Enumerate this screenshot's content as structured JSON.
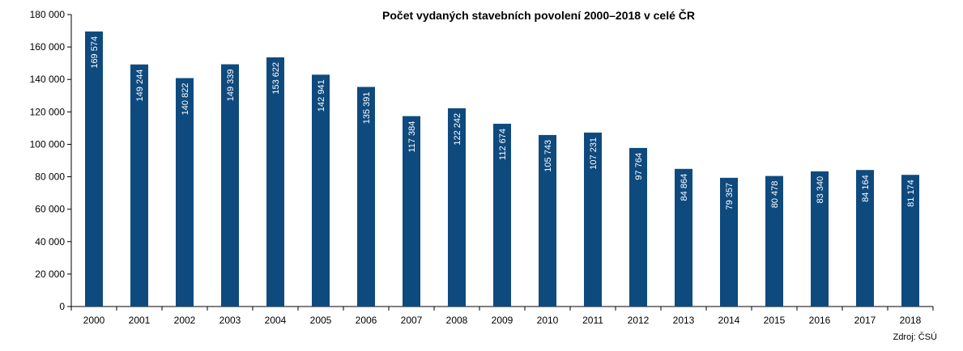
{
  "chart_data": {
    "type": "bar",
    "title": "Počet vydaných stavebních povolení 2000–2018 v celé ČR",
    "source": "Zdroj: ČSÚ",
    "categories": [
      "2000",
      "2001",
      "2002",
      "2003",
      "2004",
      "2005",
      "2006",
      "2007",
      "2008",
      "2009",
      "2010",
      "2011",
      "2012",
      "2013",
      "2014",
      "2015",
      "2016",
      "2017",
      "2018"
    ],
    "values": [
      169574,
      149244,
      140822,
      149339,
      153622,
      142941,
      135391,
      117384,
      122242,
      112674,
      105743,
      107231,
      97764,
      84864,
      79357,
      80478,
      83340,
      84164,
      81174
    ],
    "value_labels": [
      "169 574",
      "149 244",
      "140 822",
      "149 339",
      "153 622",
      "142 941",
      "135 391",
      "117 384",
      "122 242",
      "112 674",
      "105 743",
      "107 231",
      "97 764",
      "84 864",
      "79 357",
      "80 478",
      "83 340",
      "84 164",
      "81 174"
    ],
    "yticks": [
      0,
      20000,
      40000,
      60000,
      80000,
      100000,
      120000,
      140000,
      160000,
      180000
    ],
    "ytick_labels": [
      "0",
      "20 000",
      "40 000",
      "60 000",
      "80 000",
      "100 000",
      "120 000",
      "140 000",
      "160 000",
      "180 000"
    ],
    "ylim": [
      0,
      180000
    ],
    "bar_color": "#0f4a7e",
    "grid": false,
    "legend": "none"
  }
}
